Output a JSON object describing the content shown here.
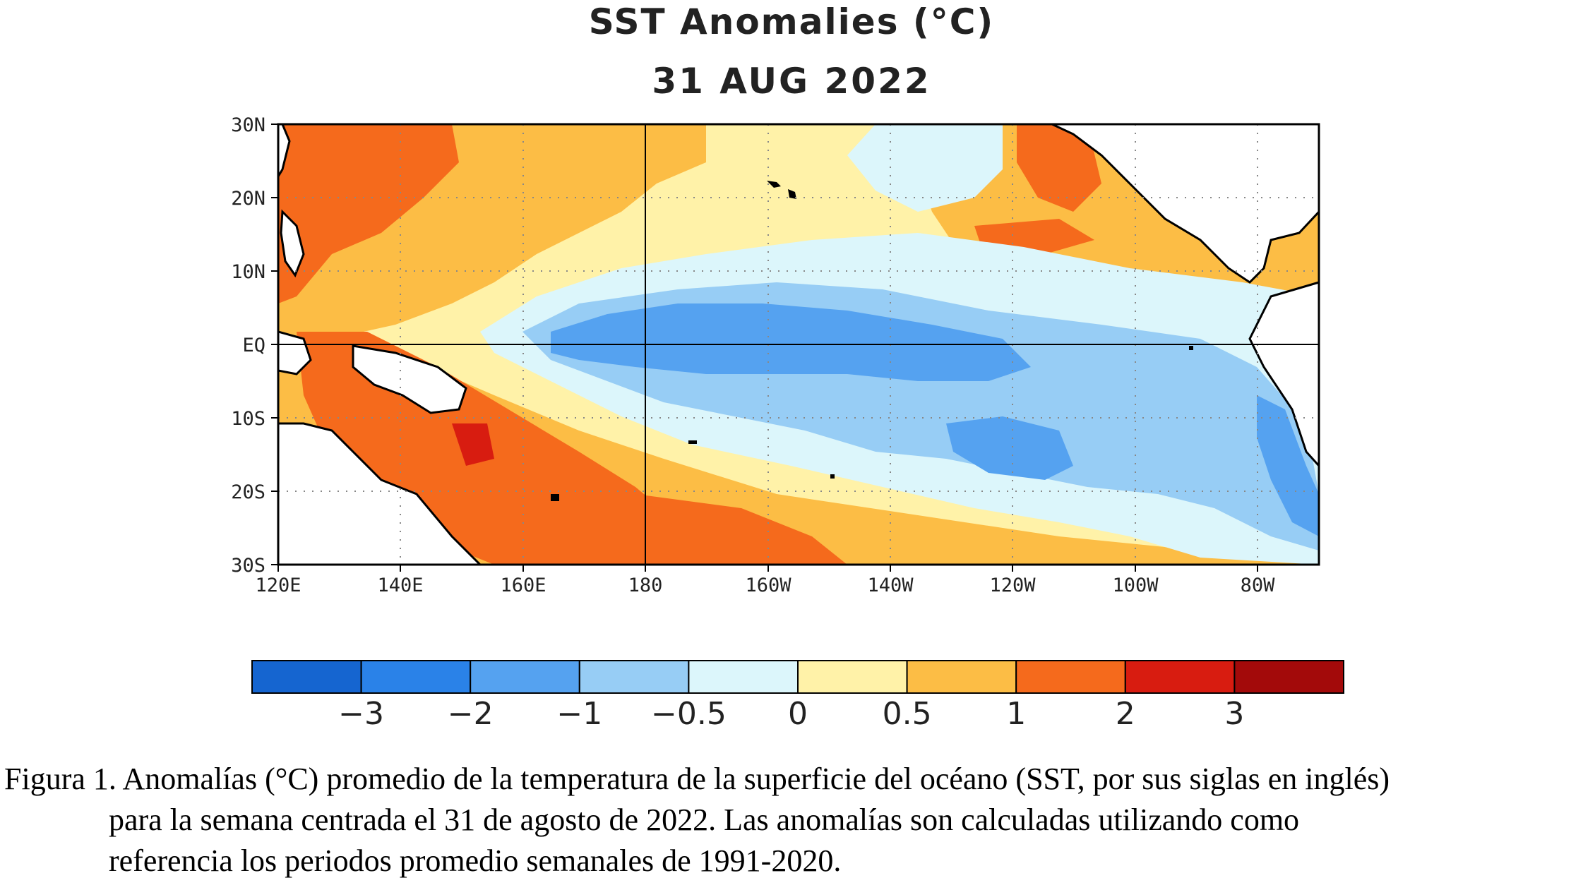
{
  "title": "SST Anomalies (°C)",
  "date": "31 AUG 2022",
  "map": {
    "lat_labels": [
      "30N",
      "20N",
      "10N",
      "EQ",
      "10S",
      "20S",
      "30S"
    ],
    "lon_labels": [
      "120E",
      "140E",
      "160E",
      "180",
      "160W",
      "140W",
      "120W",
      "100W",
      "80W"
    ],
    "lat_range": [
      -30,
      30
    ],
    "lon_range_east": [
      120,
      290
    ],
    "grid": "dotted",
    "reference_lines": [
      "EQ",
      "180"
    ]
  },
  "colorbar": {
    "colors": [
      "#1565d0",
      "#2a82e8",
      "#55a2f0",
      "#97cdf5",
      "#dcf6fb",
      "#fff2a8",
      "#fcbd45",
      "#f56a1c",
      "#d81c10",
      "#a30a0a"
    ],
    "tick_labels": [
      "−3",
      "−2",
      "−1",
      "−0.5",
      "0",
      "0.5",
      "1",
      "2",
      "3"
    ]
  },
  "caption": {
    "line1": "Figura 1. Anomalías (°C) promedio de la temperatura de la superficie del océano (SST, por sus siglas en inglés)",
    "line2": "para la semana centrada el 31 de agosto de 2022. Las anomalías son calculadas utilizando como",
    "line3": "referencia los periodos promedio semanales de 1991-2020."
  }
}
